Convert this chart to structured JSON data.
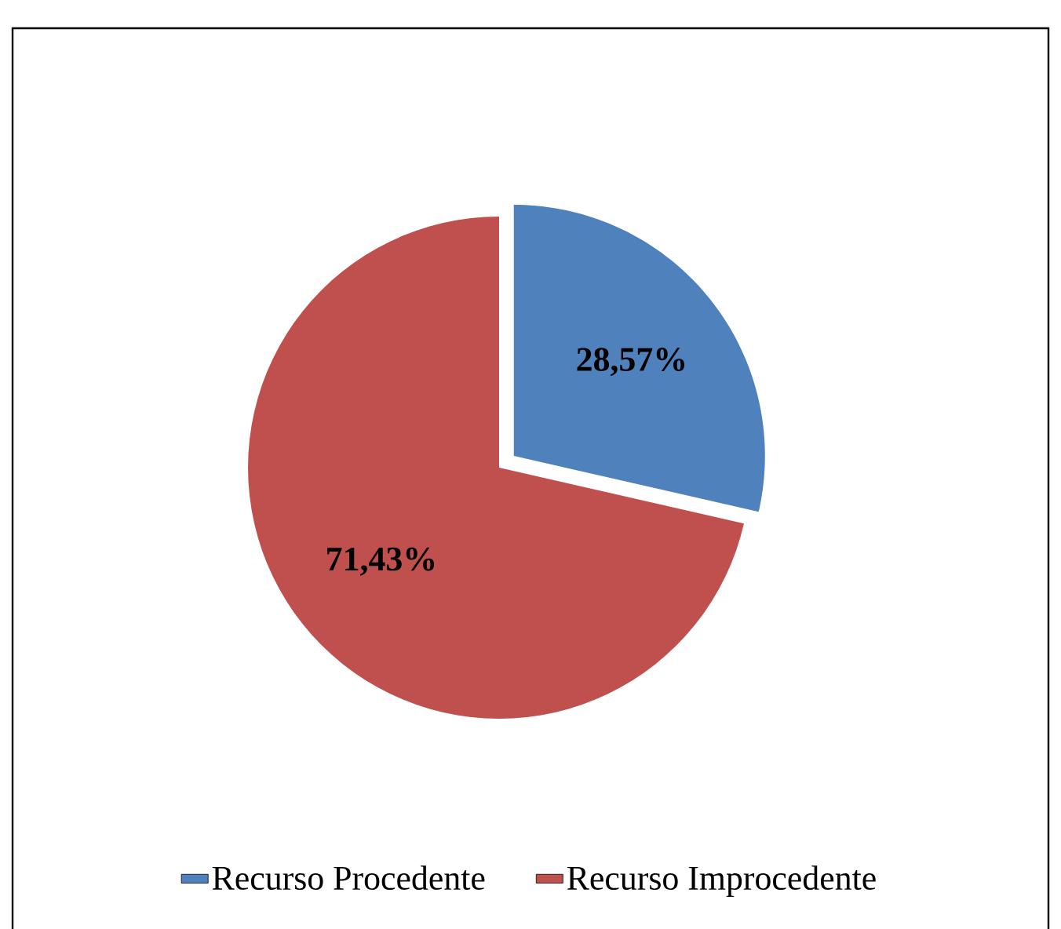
{
  "chart_data": {
    "type": "pie",
    "categories": [
      "Recurso Procedente",
      "Recurso Improcedente"
    ],
    "values": [
      28.57,
      71.43
    ],
    "colors": [
      "#4f81bd",
      "#c0504d"
    ],
    "value_labels": [
      "28,57%",
      "71,43%"
    ],
    "legend": "bottom"
  }
}
